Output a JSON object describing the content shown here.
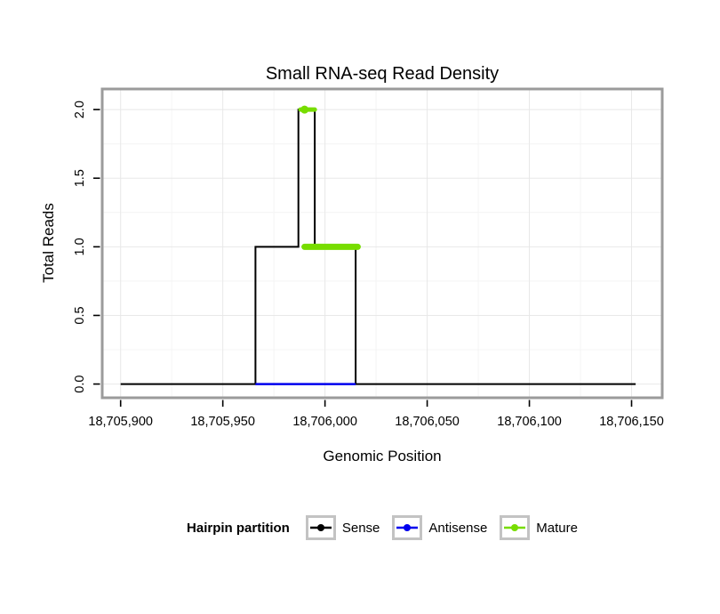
{
  "chart_data": {
    "type": "line",
    "title": "Small RNA-seq Read Density",
    "xlabel": "Genomic Position",
    "ylabel": "Total Reads",
    "xlim": [
      18705891,
      18706165
    ],
    "ylim": [
      -0.1,
      2.15
    ],
    "grid": true,
    "panel_bg": "#ffffff",
    "grid_major": "#e8e8e8",
    "grid_minor": "#f4f4f4",
    "border_color": "#9b9b9b",
    "x_ticks": [
      {
        "value": 18705900,
        "label": "18,705,900"
      },
      {
        "value": 18705950,
        "label": "18,705,950"
      },
      {
        "value": 18706000,
        "label": "18,706,000"
      },
      {
        "value": 18706050,
        "label": "18,706,050"
      },
      {
        "value": 18706100,
        "label": "18,706,100"
      },
      {
        "value": 18706150,
        "label": "18,706,150"
      }
    ],
    "y_ticks": [
      {
        "value": 0,
        "label": "0.0"
      },
      {
        "value": 0.5,
        "label": "0.5"
      },
      {
        "value": 1,
        "label": "1.0"
      },
      {
        "value": 1.5,
        "label": "1.5"
      },
      {
        "value": 2,
        "label": "2.0"
      }
    ],
    "series": [
      {
        "name": "Sense",
        "color": "#000000",
        "width": 2,
        "points": [
          [
            18705900,
            0
          ],
          [
            18705966,
            0
          ],
          [
            18705966,
            1
          ],
          [
            18705987,
            1
          ],
          [
            18705987,
            2
          ],
          [
            18705995,
            2
          ],
          [
            18705995,
            1
          ],
          [
            18706015,
            1
          ],
          [
            18706015,
            0
          ],
          [
            18706152,
            0
          ]
        ]
      },
      {
        "name": "Antisense",
        "color": "#0000EE",
        "width": 2.5,
        "points": [
          [
            18705966,
            0
          ],
          [
            18706015,
            0
          ]
        ]
      },
      {
        "name": "Mature",
        "color": "#77DD00",
        "segments": [
          {
            "y": 2,
            "x1": 18705988,
            "x2": 18705995,
            "width": 5,
            "dot": 18705990
          },
          {
            "y": 1,
            "x1": 18705990,
            "x2": 18706016,
            "width": 7
          }
        ]
      }
    ]
  },
  "legend": {
    "title": "Hairpin partition",
    "items": [
      {
        "label": "Sense"
      },
      {
        "label": "Antisense"
      },
      {
        "label": "Mature"
      }
    ]
  }
}
